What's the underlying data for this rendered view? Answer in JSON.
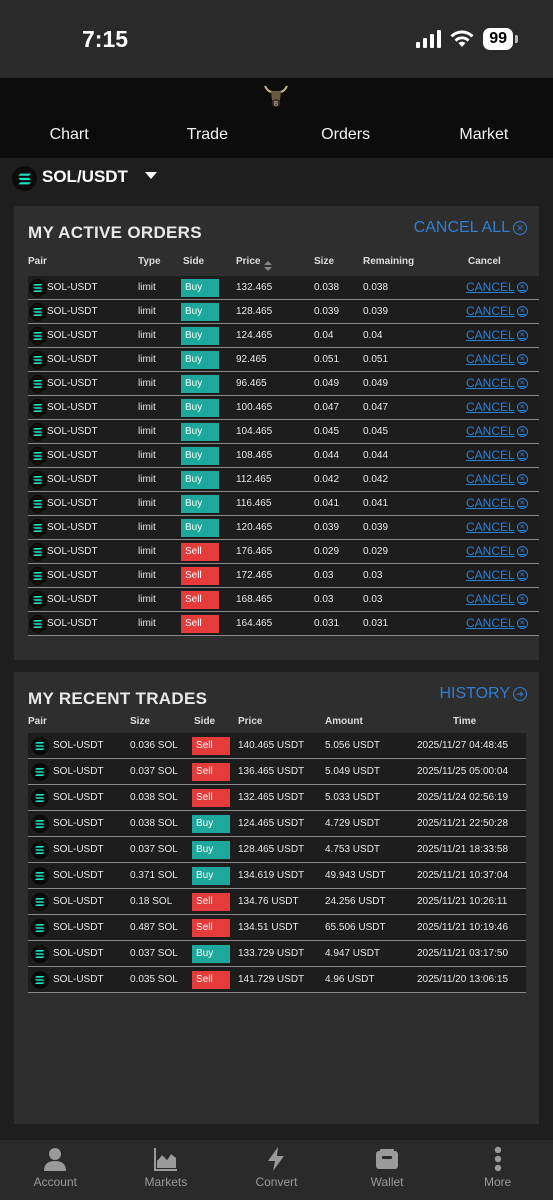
{
  "status": {
    "time": "7:15",
    "battery": "99"
  },
  "tabs": [
    "Chart",
    "Trade",
    "Orders",
    "Market"
  ],
  "pair_selector": {
    "label": "SOL/USDT"
  },
  "active_orders": {
    "title": "MY ACTIVE ORDERS",
    "cancel_all": "CANCEL ALL",
    "headers": {
      "pair": "Pair",
      "type": "Type",
      "side": "Side",
      "price": "Price",
      "size": "Size",
      "remaining": "Remaining",
      "cancel": "Cancel"
    },
    "cancel_label": "CANCEL",
    "rows": [
      {
        "pair": "SOL-USDT",
        "type": "limit",
        "side": "Buy",
        "price": "132.465",
        "size": "0.038",
        "remaining": "0.038"
      },
      {
        "pair": "SOL-USDT",
        "type": "limit",
        "side": "Buy",
        "price": "128.465",
        "size": "0.039",
        "remaining": "0.039"
      },
      {
        "pair": "SOL-USDT",
        "type": "limit",
        "side": "Buy",
        "price": "124.465",
        "size": "0.04",
        "remaining": "0.04"
      },
      {
        "pair": "SOL-USDT",
        "type": "limit",
        "side": "Buy",
        "price": "92.465",
        "size": "0.051",
        "remaining": "0.051"
      },
      {
        "pair": "SOL-USDT",
        "type": "limit",
        "side": "Buy",
        "price": "96.465",
        "size": "0.049",
        "remaining": "0.049"
      },
      {
        "pair": "SOL-USDT",
        "type": "limit",
        "side": "Buy",
        "price": "100.465",
        "size": "0.047",
        "remaining": "0.047"
      },
      {
        "pair": "SOL-USDT",
        "type": "limit",
        "side": "Buy",
        "price": "104.465",
        "size": "0.045",
        "remaining": "0.045"
      },
      {
        "pair": "SOL-USDT",
        "type": "limit",
        "side": "Buy",
        "price": "108.465",
        "size": "0.044",
        "remaining": "0.044"
      },
      {
        "pair": "SOL-USDT",
        "type": "limit",
        "side": "Buy",
        "price": "112.465",
        "size": "0.042",
        "remaining": "0.042"
      },
      {
        "pair": "SOL-USDT",
        "type": "limit",
        "side": "Buy",
        "price": "116.465",
        "size": "0.041",
        "remaining": "0.041"
      },
      {
        "pair": "SOL-USDT",
        "type": "limit",
        "side": "Buy",
        "price": "120.465",
        "size": "0.039",
        "remaining": "0.039"
      },
      {
        "pair": "SOL-USDT",
        "type": "limit",
        "side": "Sell",
        "price": "176.465",
        "size": "0.029",
        "remaining": "0.029"
      },
      {
        "pair": "SOL-USDT",
        "type": "limit",
        "side": "Sell",
        "price": "172.465",
        "size": "0.03",
        "remaining": "0.03"
      },
      {
        "pair": "SOL-USDT",
        "type": "limit",
        "side": "Sell",
        "price": "168.465",
        "size": "0.03",
        "remaining": "0.03"
      },
      {
        "pair": "SOL-USDT",
        "type": "limit",
        "side": "Sell",
        "price": "164.465",
        "size": "0.031",
        "remaining": "0.031"
      }
    ]
  },
  "recent_trades": {
    "title": "MY RECENT TRADES",
    "history": "HISTORY",
    "headers": {
      "pair": "Pair",
      "size": "Size",
      "side": "Side",
      "price": "Price",
      "amount": "Amount",
      "time": "Time"
    },
    "rows": [
      {
        "pair": "SOL-USDT",
        "size": "0.036 SOL",
        "side": "Sell",
        "price": "140.465 USDT",
        "amount": "5.056 USDT",
        "time": "2025/11/27 04:48:45"
      },
      {
        "pair": "SOL-USDT",
        "size": "0.037 SOL",
        "side": "Sell",
        "price": "136.465 USDT",
        "amount": "5.049 USDT",
        "time": "2025/11/25 05:00:04"
      },
      {
        "pair": "SOL-USDT",
        "size": "0.038 SOL",
        "side": "Sell",
        "price": "132.465 USDT",
        "amount": "5.033 USDT",
        "time": "2025/11/24 02:56:19"
      },
      {
        "pair": "SOL-USDT",
        "size": "0.038 SOL",
        "side": "Buy",
        "price": "124.465 USDT",
        "amount": "4.729 USDT",
        "time": "2025/11/21 22:50:28"
      },
      {
        "pair": "SOL-USDT",
        "size": "0.037 SOL",
        "side": "Buy",
        "price": "128.465 USDT",
        "amount": "4.753 USDT",
        "time": "2025/11/21 18:33:58"
      },
      {
        "pair": "SOL-USDT",
        "size": "0.371 SOL",
        "side": "Buy",
        "price": "134.619 USDT",
        "amount": "49.943 USDT",
        "time": "2025/11/21 10:37:04"
      },
      {
        "pair": "SOL-USDT",
        "size": "0.18 SOL",
        "side": "Sell",
        "price": "134.76 USDT",
        "amount": "24.256 USDT",
        "time": "2025/11/21 10:26:11"
      },
      {
        "pair": "SOL-USDT",
        "size": "0.487 SOL",
        "side": "Sell",
        "price": "134.51 USDT",
        "amount": "65.506 USDT",
        "time": "2025/11/21 10:19:46"
      },
      {
        "pair": "SOL-USDT",
        "size": "0.037 SOL",
        "side": "Buy",
        "price": "133.729 USDT",
        "amount": "4.947 USDT",
        "time": "2025/11/21 03:17:50"
      },
      {
        "pair": "SOL-USDT",
        "size": "0.035 SOL",
        "side": "Sell",
        "price": "141.729 USDT",
        "amount": "4.96 USDT",
        "time": "2025/11/20 13:06:15"
      }
    ]
  },
  "bottom_nav": [
    {
      "label": "Account",
      "icon": "account-icon"
    },
    {
      "label": "Markets",
      "icon": "markets-icon"
    },
    {
      "label": "Convert",
      "icon": "convert-icon"
    },
    {
      "label": "Wallet",
      "icon": "wallet-icon"
    },
    {
      "label": "More",
      "icon": "more-icon"
    }
  ],
  "colors": {
    "buy": "#1ea79c",
    "sell": "#e63b3b",
    "link": "#2f7fd4",
    "panel": "#2e2e2e"
  }
}
